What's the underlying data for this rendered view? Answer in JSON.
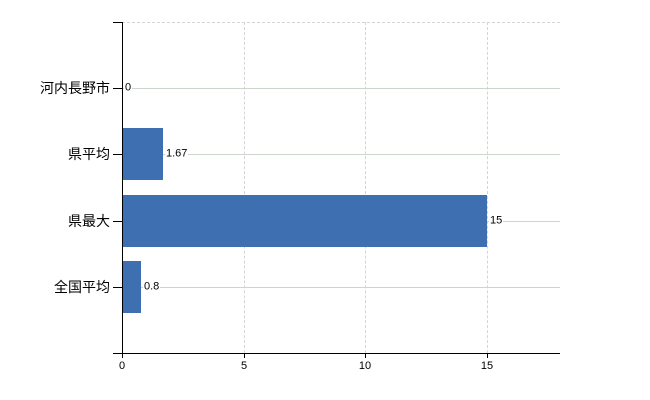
{
  "chart_data": {
    "type": "bar",
    "orientation": "horizontal",
    "title": "",
    "categories": [
      "河内長野市",
      "県平均",
      "県最大",
      "全国平均"
    ],
    "values": [
      0,
      1.67,
      15,
      0.8
    ],
    "value_labels": [
      "0",
      "1.67",
      "15",
      "0.8"
    ],
    "x_ticks": [
      0,
      5,
      10,
      15
    ],
    "x_tick_labels": [
      "0",
      "5",
      "10",
      "15"
    ],
    "xlim": [
      0,
      18
    ],
    "grid": "dashed vertical gridlines at 5, 10, 15 and dashed top border; solid light row leader lines at each category",
    "legend_position": "none",
    "colors": {
      "bar": "#3e6fb1",
      "axis": "#000000",
      "dashed_grid": "#d8d2d8",
      "row_line": "#cdd6cd",
      "text": "#000000",
      "background": "#ffffff"
    }
  }
}
